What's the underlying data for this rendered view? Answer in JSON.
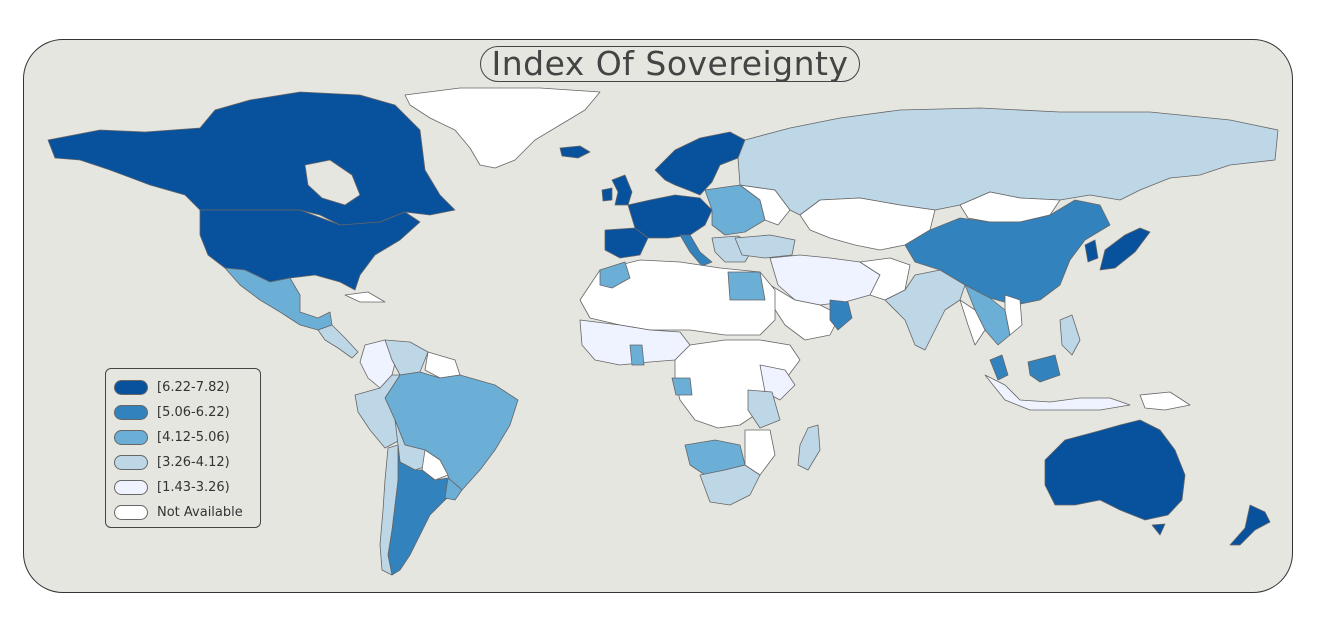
{
  "title": "Index Of Sovereignty",
  "background_color": "#e6e6e1",
  "border_color": "#666666",
  "legend": {
    "placement": "bottom-left",
    "items": [
      {
        "label": "[6.22-7.82)",
        "color": "#08519c"
      },
      {
        "label": "[5.06-6.22)",
        "color": "#3182bd"
      },
      {
        "label": "[4.12-5.06)",
        "color": "#6baed6"
      },
      {
        "label": "[3.26-4.12)",
        "color": "#bdd7e7"
      },
      {
        "label": "[1.43-3.26)",
        "color": "#eff3ff"
      },
      {
        "label": "Not Available",
        "color": "#ffffff"
      }
    ]
  }
}
